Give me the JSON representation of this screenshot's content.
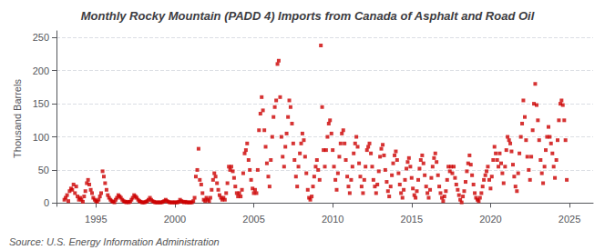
{
  "chart_data": {
    "type": "scatter",
    "title": "Monthly Rocky Mountain (PADD 4) Imports from Canada of Asphalt and Road Oil",
    "ylabel": "Thousand Barrels",
    "annotations": [
      "Source: U.S. Energy Information Administration"
    ],
    "color": "#cc0000",
    "marker": "square",
    "grid": "y",
    "xlim": [
      1992.5,
      2026.5
    ],
    "ylim": [
      -5,
      260
    ],
    "xticks": [
      1995,
      2000,
      2005,
      2010,
      2015,
      2020,
      2025
    ],
    "yticks": [
      0,
      50,
      100,
      150,
      200,
      250
    ],
    "x": [
      1993.0,
      1993.08,
      1993.17,
      1993.25,
      1993.33,
      1993.42,
      1993.5,
      1993.58,
      1993.67,
      1993.75,
      1993.83,
      1993.92,
      1994.0,
      1994.08,
      1994.17,
      1994.25,
      1994.33,
      1994.42,
      1994.5,
      1994.58,
      1994.67,
      1994.75,
      1994.83,
      1994.92,
      1995.0,
      1995.08,
      1995.17,
      1995.25,
      1995.33,
      1995.42,
      1995.5,
      1995.58,
      1995.67,
      1995.75,
      1995.83,
      1995.92,
      1996.0,
      1996.08,
      1996.17,
      1996.25,
      1996.33,
      1996.42,
      1996.5,
      1996.58,
      1996.67,
      1996.75,
      1996.83,
      1996.92,
      1997.0,
      1997.08,
      1997.17,
      1997.25,
      1997.33,
      1997.42,
      1997.5,
      1997.58,
      1997.67,
      1997.75,
      1997.83,
      1997.92,
      1998.0,
      1998.08,
      1998.17,
      1998.25,
      1998.33,
      1998.42,
      1998.5,
      1998.58,
      1998.67,
      1998.75,
      1998.83,
      1998.92,
      1999.0,
      1999.08,
      1999.17,
      1999.25,
      1999.33,
      1999.42,
      1999.5,
      1999.58,
      1999.67,
      1999.75,
      1999.83,
      1999.92,
      2000.0,
      2000.08,
      2000.17,
      2000.25,
      2000.33,
      2000.42,
      2000.5,
      2000.58,
      2000.67,
      2000.75,
      2000.83,
      2000.92,
      2001.0,
      2001.08,
      2001.17,
      2001.25,
      2001.33,
      2001.42,
      2001.5,
      2001.58,
      2001.67,
      2001.75,
      2001.83,
      2001.92,
      2002.0,
      2002.08,
      2002.17,
      2002.25,
      2002.33,
      2002.42,
      2002.5,
      2002.58,
      2002.67,
      2002.75,
      2002.83,
      2002.92,
      2003.0,
      2003.08,
      2003.17,
      2003.25,
      2003.33,
      2003.42,
      2003.5,
      2003.58,
      2003.67,
      2003.75,
      2003.83,
      2003.92,
      2004.0,
      2004.08,
      2004.17,
      2004.25,
      2004.33,
      2004.42,
      2004.5,
      2004.58,
      2004.67,
      2004.75,
      2004.83,
      2004.92,
      2005.0,
      2005.08,
      2005.17,
      2005.25,
      2005.33,
      2005.42,
      2005.5,
      2005.58,
      2005.67,
      2005.75,
      2005.83,
      2005.92,
      2006.0,
      2006.08,
      2006.17,
      2006.25,
      2006.33,
      2006.42,
      2006.5,
      2006.58,
      2006.67,
      2006.75,
      2006.83,
      2006.92,
      2007.0,
      2007.08,
      2007.17,
      2007.25,
      2007.33,
      2007.42,
      2007.5,
      2007.58,
      2007.67,
      2007.75,
      2007.83,
      2007.92,
      2008.0,
      2008.08,
      2008.17,
      2008.25,
      2008.33,
      2008.42,
      2008.5,
      2008.58,
      2008.67,
      2008.75,
      2008.83,
      2008.92,
      2009.0,
      2009.08,
      2009.17,
      2009.25,
      2009.33,
      2009.42,
      2009.5,
      2009.58,
      2009.67,
      2009.75,
      2009.83,
      2009.92,
      2010.0,
      2010.08,
      2010.17,
      2010.25,
      2010.33,
      2010.42,
      2010.5,
      2010.58,
      2010.67,
      2010.75,
      2010.83,
      2010.92,
      2011.0,
      2011.08,
      2011.17,
      2011.25,
      2011.33,
      2011.42,
      2011.5,
      2011.58,
      2011.67,
      2011.75,
      2011.83,
      2011.92,
      2012.0,
      2012.08,
      2012.17,
      2012.25,
      2012.33,
      2012.42,
      2012.5,
      2012.58,
      2012.67,
      2012.75,
      2012.83,
      2012.92,
      2013.0,
      2013.08,
      2013.17,
      2013.25,
      2013.33,
      2013.42,
      2013.5,
      2013.58,
      2013.67,
      2013.75,
      2013.83,
      2013.92,
      2014.0,
      2014.08,
      2014.17,
      2014.25,
      2014.33,
      2014.42,
      2014.5,
      2014.58,
      2014.67,
      2014.75,
      2014.83,
      2014.92,
      2015.0,
      2015.08,
      2015.17,
      2015.25,
      2015.33,
      2015.42,
      2015.5,
      2015.58,
      2015.67,
      2015.75,
      2015.83,
      2015.92,
      2016.0,
      2016.08,
      2016.17,
      2016.25,
      2016.33,
      2016.42,
      2016.5,
      2016.58,
      2016.67,
      2016.75,
      2016.83,
      2016.92,
      2017.0,
      2017.08,
      2017.17,
      2017.25,
      2017.33,
      2017.42,
      2017.5,
      2017.58,
      2017.67,
      2017.75,
      2017.83,
      2017.92,
      2018.0,
      2018.08,
      2018.17,
      2018.25,
      2018.33,
      2018.42,
      2018.5,
      2018.58,
      2018.67,
      2018.75,
      2018.83,
      2018.92,
      2019.0,
      2019.08,
      2019.17,
      2019.25,
      2019.33,
      2019.42,
      2019.5,
      2019.58,
      2019.67,
      2019.75,
      2019.83,
      2019.92,
      2020.0,
      2020.08,
      2020.17,
      2020.25,
      2020.33,
      2020.42,
      2020.5,
      2020.58,
      2020.67,
      2020.75,
      2020.83,
      2020.92,
      2021.0,
      2021.08,
      2021.17,
      2021.25,
      2021.33,
      2021.42,
      2021.5,
      2021.58,
      2021.67,
      2021.75,
      2021.83,
      2021.92,
      2022.0,
      2022.08,
      2022.17,
      2022.25,
      2022.33,
      2022.42,
      2022.5,
      2022.58,
      2022.67,
      2022.75,
      2022.83,
      2022.92,
      2023.0,
      2023.08,
      2023.17,
      2023.25,
      2023.33,
      2023.42,
      2023.5,
      2023.58,
      2023.67,
      2023.75,
      2023.83,
      2023.92,
      2024.0,
      2024.08,
      2024.17,
      2024.25,
      2024.33,
      2024.42,
      2024.5,
      2024.58,
      2024.67,
      2024.75,
      2024.83
    ],
    "values": [
      5,
      8,
      12,
      3,
      18,
      22,
      20,
      28,
      15,
      25,
      10,
      5,
      8,
      5,
      2,
      10,
      18,
      30,
      35,
      28,
      20,
      15,
      8,
      5,
      3,
      2,
      5,
      10,
      15,
      48,
      40,
      30,
      20,
      12,
      8,
      5,
      3,
      2,
      1,
      5,
      8,
      12,
      10,
      8,
      5,
      3,
      2,
      1,
      2,
      1,
      2,
      5,
      8,
      12,
      10,
      8,
      5,
      3,
      2,
      1,
      1,
      1,
      2,
      3,
      5,
      8,
      5,
      3,
      2,
      1,
      1,
      1,
      1,
      1,
      1,
      2,
      3,
      5,
      3,
      2,
      1,
      1,
      1,
      1,
      1,
      1,
      1,
      2,
      5,
      3,
      2,
      1,
      2,
      1,
      1,
      1,
      1,
      1,
      3,
      8,
      40,
      50,
      82,
      35,
      28,
      15,
      5,
      3,
      8,
      5,
      3,
      8,
      20,
      35,
      45,
      40,
      30,
      20,
      12,
      8,
      5,
      8,
      5,
      15,
      30,
      55,
      50,
      55,
      48,
      38,
      25,
      15,
      10,
      15,
      10,
      20,
      45,
      75,
      80,
      90,
      65,
      50,
      35,
      22,
      15,
      20,
      15,
      50,
      110,
      135,
      160,
      140,
      110,
      85,
      60,
      40,
      25,
      65,
      100,
      130,
      145,
      155,
      210,
      215,
      160,
      100,
      70,
      55,
      85,
      105,
      130,
      155,
      145,
      120,
      90,
      65,
      40,
      25,
      55,
      75,
      90,
      105,
      95,
      70,
      45,
      20,
      8,
      5,
      10,
      25,
      40,
      55,
      65,
      50,
      35,
      238,
      145,
      80,
      55,
      80,
      100,
      120,
      125,
      105,
      80,
      55,
      35,
      20,
      45,
      70,
      90,
      105,
      110,
      90,
      65,
      40,
      25,
      15,
      35,
      55,
      75,
      90,
      100,
      85,
      60,
      40,
      25,
      15,
      35,
      55,
      80,
      85,
      90,
      75,
      55,
      35,
      25,
      15,
      28,
      48,
      70,
      82,
      88,
      72,
      50,
      32,
      18,
      10,
      25,
      42,
      60,
      72,
      78,
      65,
      45,
      28,
      15,
      8,
      20,
      35,
      52,
      62,
      68,
      55,
      38,
      22,
      12,
      8,
      18,
      35,
      52,
      65,
      72,
      60,
      42,
      25,
      15,
      8,
      20,
      38,
      55,
      68,
      75,
      62,
      42,
      25,
      15,
      8,
      3,
      10,
      18,
      35,
      55,
      48,
      55,
      45,
      55,
      38,
      28,
      20,
      12,
      5,
      1,
      10,
      18,
      32,
      48,
      60,
      72,
      58,
      42,
      28,
      15,
      8,
      5,
      3,
      8,
      15,
      25,
      35,
      42,
      48,
      55,
      35,
      22,
      40,
      65,
      85,
      75,
      65,
      55,
      75,
      60,
      45,
      30,
      55,
      80,
      100,
      95,
      90,
      78,
      58,
      40,
      25,
      18,
      45,
      75,
      100,
      120,
      155,
      130,
      95,
      70,
      50,
      35,
      70,
      110,
      150,
      180,
      148,
      125,
      95,
      65,
      45,
      30,
      55,
      80,
      100,
      115,
      100,
      90,
      75,
      55,
      38,
      65,
      95,
      125,
      150,
      155,
      148,
      125,
      95,
      35
    ]
  }
}
